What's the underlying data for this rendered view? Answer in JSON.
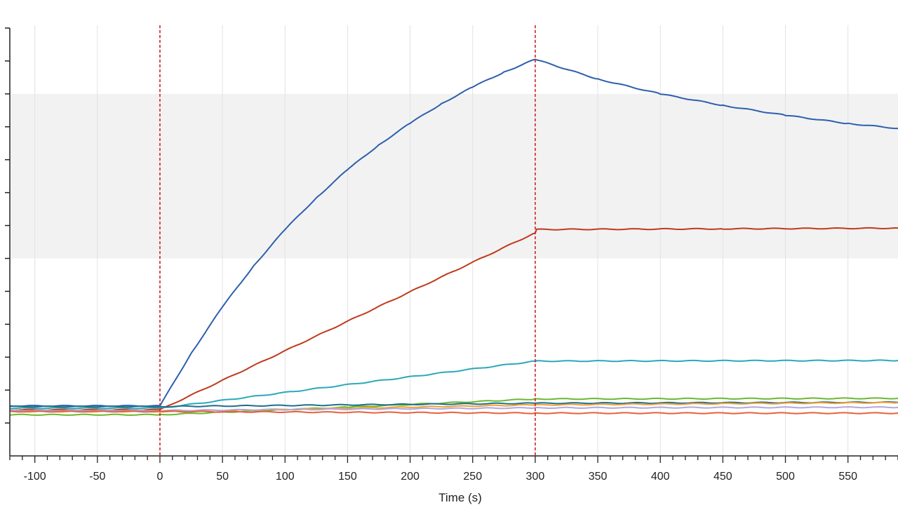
{
  "chart_data": {
    "type": "line",
    "title": "",
    "xlabel": "Time (s)",
    "ylabel": "",
    "xlim": [
      -120,
      590
    ],
    "ylim": [
      -1.0,
      12.0
    ],
    "x_ticks": [
      -100,
      -50,
      0,
      50,
      100,
      150,
      200,
      250,
      300,
      350,
      400,
      450,
      500,
      550
    ],
    "x_tick_labels": [
      "-100",
      "-50",
      "0",
      "50",
      "100",
      "150",
      "200",
      "250",
      "300",
      "350",
      "400",
      "450",
      "500",
      "550"
    ],
    "y_ticks": [
      0,
      1,
      2,
      3,
      4,
      5,
      6,
      7,
      8,
      9,
      10,
      11,
      12
    ],
    "shaded_band": [
      5,
      10
    ],
    "event_lines": [
      0,
      300
    ],
    "grid": true,
    "legend": "none",
    "series": [
      {
        "color": "#2d5fad",
        "x": [
          -120,
          0,
          25,
          50,
          75,
          100,
          125,
          150,
          175,
          200,
          225,
          250,
          275,
          300,
          350,
          400,
          450,
          500,
          550,
          590
        ],
        "y": [
          0.52,
          0.52,
          2.12,
          3.53,
          4.78,
          5.88,
          6.84,
          7.7,
          8.45,
          9.11,
          9.7,
          10.21,
          10.66,
          11.05,
          10.45,
          10.0,
          9.65,
          9.35,
          9.1,
          8.95
        ]
      },
      {
        "color": "#c0391b",
        "x": [
          -120,
          0,
          300,
          301,
          450,
          590
        ],
        "y": [
          0.4,
          0.4,
          5.78,
          5.88,
          5.9,
          5.92
        ]
      },
      {
        "color": "#2aa8b8",
        "x": [
          -120,
          0,
          300,
          301,
          590
        ],
        "y": [
          0.45,
          0.45,
          1.88,
          1.88,
          1.9
        ]
      },
      {
        "color": "#6ab830",
        "x": [
          -120,
          0,
          150,
          300,
          590
        ],
        "y": [
          0.25,
          0.25,
          0.48,
          0.73,
          0.75
        ]
      },
      {
        "color": "#1f6f8b",
        "x": [
          -120,
          0,
          300,
          590
        ],
        "y": [
          0.5,
          0.5,
          0.6,
          0.63
        ]
      },
      {
        "color": "#f0a030",
        "x": [
          -120,
          0,
          300,
          590
        ],
        "y": [
          0.35,
          0.35,
          0.55,
          0.62
        ]
      },
      {
        "color": "#b0a8e0",
        "x": [
          -120,
          0,
          300,
          590
        ],
        "y": [
          0.38,
          0.38,
          0.46,
          0.48
        ]
      },
      {
        "color": "#e8603a",
        "x": [
          -120,
          0,
          300,
          590
        ],
        "y": [
          0.35,
          0.35,
          0.3,
          0.3
        ]
      }
    ]
  }
}
